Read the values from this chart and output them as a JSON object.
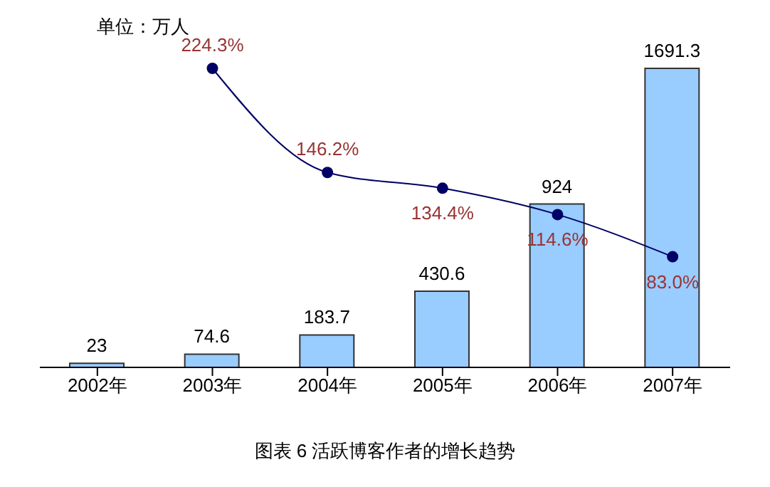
{
  "chart_data": {
    "type": "bar",
    "title": "图表 6 活跃博客作者的增长趋势",
    "ylabel": "单位：万人",
    "categories": [
      "2002年",
      "2003年",
      "2004年",
      "2005年",
      "2006年",
      "2007年"
    ],
    "series": [
      {
        "color": "#99ccff",
        "values": [
          23,
          74.6,
          183.7,
          430.6,
          924,
          1691.3
        ]
      },
      {
        "type": "line",
        "axis": "y2",
        "color": "#000066",
        "marker": "circle",
        "values": [
          null,
          224.3,
          146.2,
          134.4,
          114.6,
          83.0
        ],
        "value_labels": [
          null,
          "224.3%",
          "146.2%",
          "134.4%",
          "114.6%",
          "83.0%"
        ]
      }
    ],
    "data_labels": true,
    "grid": false,
    "legend": false
  }
}
